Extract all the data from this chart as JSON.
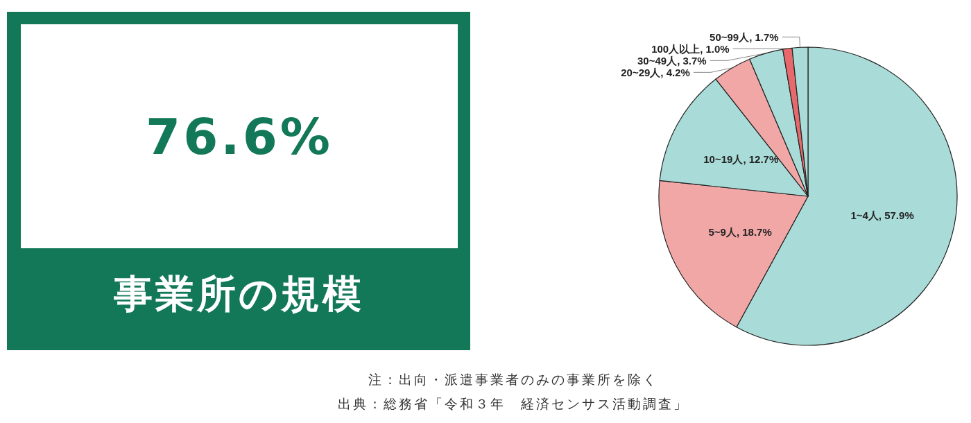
{
  "chart_data": [
    {
      "type": "other",
      "title": "事業所の規模",
      "annotations": [
        "76.6%"
      ]
    },
    {
      "type": "pie",
      "categories": [
        "1~4人",
        "5~9人",
        "10~19人",
        "20~29人",
        "30~49人",
        "100人以上",
        "50~99人"
      ],
      "values": [
        57.9,
        18.7,
        12.7,
        4.2,
        3.7,
        1.0,
        1.7
      ],
      "value_labels": [
        "57.9%",
        "18.7%",
        "12.7%",
        "4.2%",
        "3.7%",
        "1.0%",
        "1.7%"
      ],
      "colors": [
        "#a9dcd8",
        "#f2a7a7",
        "#a9dcd8",
        "#f2a7a7",
        "#a9dcd8",
        "#e8696b",
        "#a9dcd8"
      ],
      "annotations": [
        "注：出向・派遣事業者のみの事業所を除く",
        "出典：総務省「令和３年　経済センサス活動調査」"
      ]
    }
  ]
}
